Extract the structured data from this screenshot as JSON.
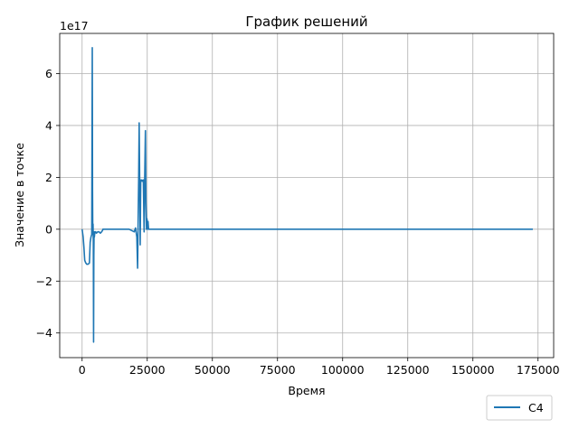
{
  "chart_data": {
    "type": "line",
    "title": "График решений",
    "xlabel": "Время",
    "ylabel": "Значение в точке",
    "offset_text": "1e17",
    "xlim": [
      -8600,
      181000
    ],
    "ylim": [
      -4.95,
      7.55
    ],
    "y_scale": 1e+17,
    "grid": true,
    "legend_position": "below-right",
    "x_ticks": [
      {
        "value": 0,
        "label": "0"
      },
      {
        "value": 25000,
        "label": "25000"
      },
      {
        "value": 50000,
        "label": "50000"
      },
      {
        "value": 75000,
        "label": "75000"
      },
      {
        "value": 100000,
        "label": "100000"
      },
      {
        "value": 125000,
        "label": "125000"
      },
      {
        "value": 150000,
        "label": "150000"
      },
      {
        "value": 175000,
        "label": "175000"
      }
    ],
    "y_ticks": [
      {
        "value": -4,
        "label": "−4"
      },
      {
        "value": -2,
        "label": "−2"
      },
      {
        "value": 0,
        "label": "0"
      },
      {
        "value": 2,
        "label": "2"
      },
      {
        "value": 4,
        "label": "4"
      },
      {
        "value": 6,
        "label": "6"
      }
    ],
    "series": [
      {
        "name": "C4",
        "color": "#1f77b4",
        "x": [
          0,
          400,
          700,
          1000,
          1400,
          1800,
          2300,
          2800,
          3100,
          3400,
          3700,
          3900,
          4000,
          4100,
          4200,
          4300,
          4400,
          4500,
          4600,
          4700,
          4800,
          5000,
          5200,
          5500,
          6000,
          6500,
          7000,
          7500,
          7800,
          8000,
          9000,
          12000,
          15000,
          18000,
          20000,
          20500,
          21000,
          21300,
          21500,
          21700,
          21900,
          22100,
          22300,
          22500,
          22700,
          22900,
          23200,
          23500,
          23800,
          24000,
          24300,
          24500,
          24700,
          24900,
          25100,
          25300,
          25500,
          25700,
          26000,
          30000,
          60000,
          100000,
          140000,
          173000
        ],
        "y": [
          0,
          -0.3,
          -0.7,
          -1.2,
          -1.3,
          -1.35,
          -1.35,
          -1.3,
          -0.5,
          -0.3,
          -0.2,
          7.0,
          1.5,
          -0.2,
          0.2,
          -0.5,
          -4.35,
          -1.0,
          -0.1,
          -0.3,
          -0.2,
          -0.1,
          -0.1,
          -0.15,
          -0.1,
          -0.1,
          -0.15,
          -0.1,
          -0.05,
          0,
          0,
          0,
          0,
          0,
          -0.1,
          0.05,
          -0.3,
          -1.5,
          0.3,
          1.9,
          4.1,
          1.8,
          -0.6,
          1.9,
          1.85,
          1.9,
          1.85,
          1.9,
          -0.1,
          1.8,
          3.8,
          1.0,
          0,
          0.4,
          0,
          0.3,
          0,
          0,
          0,
          0,
          0,
          0,
          0,
          0
        ]
      }
    ]
  }
}
